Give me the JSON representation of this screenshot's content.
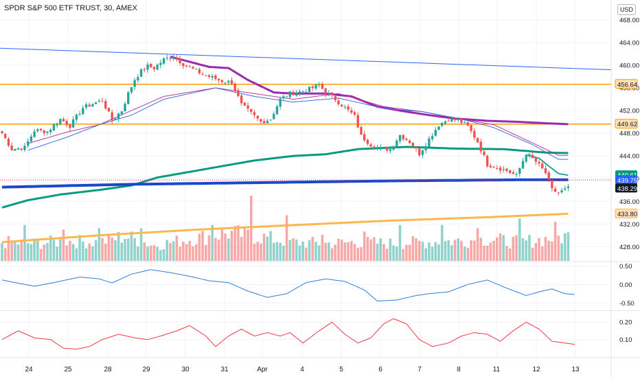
{
  "window": {
    "title": "SPDR S&P 500 ETF TRUST, 30, AMEX"
  },
  "currency_button": "USD",
  "colors": {
    "up": "#26a69a",
    "down": "#ef5350",
    "grid": "#f0f3fa",
    "trend_blue": "#2962ff",
    "orange_level": "#ff9800",
    "purple": "#9c27b0",
    "green_ma": "#089981",
    "blue_ma": "#1848cc",
    "ma_orange": "#ffb74d",
    "osc1": "#2e7bd6",
    "osc2": "#f23645"
  },
  "chart_data": [
    {
      "type": "candlestick",
      "title": "SPDR S&P 500 ETF TRUST, 30, AMEX",
      "ylim": [
        425.5,
        471.5
      ],
      "y_ticks": [
        428,
        432,
        436,
        440,
        444,
        448,
        452,
        456,
        460,
        464,
        468
      ],
      "x_ticks": [
        "24",
        "25",
        "28",
        "29",
        "30",
        "31",
        "Apr",
        "4",
        "5",
        "6",
        "7",
        "8",
        "11",
        "12",
        "13"
      ],
      "price_labels": [
        {
          "value": 456.64,
          "label": "456.64",
          "color": "#ff9800"
        },
        {
          "value": 449.62,
          "label": "449.62",
          "color": "#ff9800"
        },
        {
          "value": 440.61,
          "label": "440.61",
          "color": "#089981"
        },
        {
          "value": 439.75,
          "label": "439.75",
          "color": "#2962ff"
        },
        {
          "value": 438.29,
          "label": "438.29",
          "color": "#131722"
        },
        {
          "value": 433.8,
          "label": "433.80",
          "color": "#ffb74d"
        }
      ],
      "horizontal_levels": [
        456.64,
        449.62
      ],
      "trend_line": {
        "start": 463.0,
        "end": 459.2
      },
      "last_price": 439.75,
      "close_anchors": [
        [
          0,
          448.0
        ],
        [
          3,
          445.2
        ],
        [
          7,
          445.5
        ],
        [
          10,
          448.5
        ],
        [
          14,
          448.3
        ],
        [
          18,
          450.5
        ],
        [
          21,
          449.3
        ],
        [
          25,
          452.5
        ],
        [
          28,
          453.2
        ],
        [
          31,
          453.8
        ],
        [
          34,
          450.3
        ],
        [
          37,
          452.0
        ],
        [
          39,
          455.0
        ],
        [
          41,
          457.5
        ],
        [
          43,
          459.0
        ],
        [
          45,
          459.8
        ],
        [
          47,
          459.5
        ],
        [
          50,
          461.0
        ],
        [
          53,
          461.6
        ],
        [
          56,
          460.2
        ],
        [
          59,
          459.3
        ],
        [
          62,
          458.4
        ],
        [
          65,
          457.8
        ],
        [
          68,
          457.2
        ],
        [
          71,
          457.0
        ],
        [
          74,
          453.0
        ],
        [
          77,
          451.5
        ],
        [
          80,
          450.0
        ],
        [
          83,
          450.5
        ],
        [
          86,
          454.0
        ],
        [
          89,
          455.0
        ],
        [
          92,
          455.3
        ],
        [
          95,
          455.8
        ],
        [
          98,
          456.5
        ],
        [
          100,
          455.2
        ],
        [
          103,
          454.0
        ],
        [
          106,
          452.5
        ],
        [
          109,
          451.0
        ],
        [
          111,
          447.5
        ],
        [
          114,
          446.0
        ],
        [
          117,
          445.3
        ],
        [
          120,
          445.2
        ],
        [
          123,
          447.7
        ],
        [
          126,
          446.5
        ],
        [
          129,
          444.4
        ],
        [
          132,
          447.0
        ],
        [
          135,
          449.5
        ],
        [
          138,
          450.5
        ],
        [
          141,
          450.3
        ],
        [
          144,
          449.2
        ],
        [
          147,
          446.5
        ],
        [
          150,
          442.5
        ],
        [
          153,
          442.0
        ],
        [
          156,
          441.4
        ],
        [
          159,
          440.5
        ],
        [
          162,
          444.5
        ],
        [
          165,
          443.0
        ],
        [
          168,
          441.0
        ],
        [
          170,
          438.0
        ],
        [
          172,
          437.5
        ],
        [
          175,
          438.3
        ]
      ],
      "volume_anchors": [
        [
          0,
          0.3
        ],
        [
          10,
          0.28
        ],
        [
          20,
          0.32
        ],
        [
          30,
          0.3
        ],
        [
          38,
          0.4
        ],
        [
          47,
          0.25
        ],
        [
          58,
          0.35
        ],
        [
          70,
          0.45
        ],
        [
          78,
          0.4
        ],
        [
          90,
          0.3
        ],
        [
          100,
          0.28
        ],
        [
          110,
          0.3
        ],
        [
          120,
          0.28
        ],
        [
          130,
          0.3
        ],
        [
          140,
          0.32
        ],
        [
          150,
          0.35
        ],
        [
          160,
          0.3
        ],
        [
          175,
          0.4
        ]
      ],
      "volume_spikes": [
        [
          7,
          0.55
        ],
        [
          19,
          0.48
        ],
        [
          30,
          0.5
        ],
        [
          43,
          0.5
        ],
        [
          65,
          0.55
        ],
        [
          77,
          1.0
        ],
        [
          88,
          0.7
        ],
        [
          99,
          0.4
        ],
        [
          112,
          0.45
        ],
        [
          123,
          0.55
        ],
        [
          136,
          0.55
        ],
        [
          147,
          0.5
        ],
        [
          160,
          0.65
        ],
        [
          171,
          0.6
        ]
      ],
      "indicator_lines": [
        {
          "name": "purple",
          "color": "#9c27b0",
          "width": 3,
          "from": 52,
          "anchors": [
            [
              52,
              461.5
            ],
            [
              58,
              460.6
            ],
            [
              64,
              459.7
            ],
            [
              70,
              459.5
            ],
            [
              76,
              457.4
            ],
            [
              84,
              455.2
            ],
            [
              90,
              455.0
            ],
            [
              100,
              455.0
            ],
            [
              108,
              454.5
            ],
            [
              116,
              452.7
            ],
            [
              124,
              451.9
            ],
            [
              132,
              451.2
            ],
            [
              140,
              450.6
            ],
            [
              150,
              450.2
            ],
            [
              160,
              450.0
            ],
            [
              167,
              449.8
            ],
            [
              175,
              449.6
            ]
          ]
        },
        {
          "name": "green",
          "color": "#089981",
          "width": 3,
          "from": 0,
          "anchors": [
            [
              0,
              434.9
            ],
            [
              8,
              436.2
            ],
            [
              18,
              437.2
            ],
            [
              30,
              438.0
            ],
            [
              40,
              438.8
            ],
            [
              48,
              440.2
            ],
            [
              58,
              441.2
            ],
            [
              68,
              442.2
            ],
            [
              78,
              443.2
            ],
            [
              90,
              444.0
            ],
            [
              100,
              444.3
            ],
            [
              110,
              445.2
            ],
            [
              125,
              445.6
            ],
            [
              140,
              445.3
            ],
            [
              155,
              445.2
            ],
            [
              168,
              444.6
            ],
            [
              175,
              444.5
            ]
          ]
        },
        {
          "name": "blue",
          "color": "#1848cc",
          "width": 4,
          "from": 0,
          "anchors": [
            [
              0,
              438.5
            ],
            [
              40,
              439.0
            ],
            [
              80,
              439.3
            ],
            [
              120,
              439.6
            ],
            [
              160,
              439.8
            ],
            [
              175,
              439.8
            ]
          ]
        },
        {
          "name": "orange",
          "color": "#ffb74d",
          "width": 3,
          "from": 0,
          "anchors": [
            [
              0,
              428.8
            ],
            [
              30,
              430.0
            ],
            [
              60,
              431.0
            ],
            [
              90,
              431.8
            ],
            [
              120,
              432.6
            ],
            [
              150,
              433.2
            ],
            [
              175,
              433.8
            ]
          ]
        },
        {
          "name": "thin-purple",
          "color": "#b8389b",
          "width": 1,
          "from": 8,
          "anchors": [
            [
              8,
              446.2
            ],
            [
              20,
              448.2
            ],
            [
              30,
              449.5
            ],
            [
              42,
              452.5
            ],
            [
              50,
              454.5
            ],
            [
              66,
              456.0
            ],
            [
              78,
              455.0
            ],
            [
              90,
              454.0
            ],
            [
              104,
              455.0
            ],
            [
              118,
              452.7
            ],
            [
              130,
              451.8
            ],
            [
              142,
              450.5
            ],
            [
              152,
              449.5
            ],
            [
              164,
              446.3
            ],
            [
              172,
              444.1
            ]
          ]
        },
        {
          "name": "thin-blue",
          "color": "#3f6fd9",
          "width": 1,
          "from": 8,
          "anchors": [
            [
              8,
              445.0
            ],
            [
              20,
              447.3
            ],
            [
              30,
              449.5
            ],
            [
              40,
              451.2
            ],
            [
              50,
              454.0
            ],
            [
              66,
              456.0
            ],
            [
              78,
              454.5
            ],
            [
              90,
              453.5
            ],
            [
              104,
              454.2
            ],
            [
              118,
              452.4
            ],
            [
              130,
              451.8
            ],
            [
              142,
              450.5
            ],
            [
              152,
              449.0
            ],
            [
              164,
              446.0
            ],
            [
              172,
              443.4
            ]
          ]
        },
        {
          "name": "teal-short",
          "color": "#26a69a",
          "width": 2,
          "from": 162,
          "anchors": [
            [
              162,
              444.2
            ],
            [
              166,
              443.6
            ],
            [
              169,
              442.2
            ],
            [
              172,
              440.9
            ],
            [
              175,
              440.6
            ]
          ]
        }
      ],
      "sub_panels": [
        {
          "name": "osc1",
          "color": "#2e7bd6",
          "y_ticks": [
            0.5,
            0.0,
            -0.5
          ],
          "ylim": [
            -0.68,
            0.6
          ],
          "anchors": [
            [
              0,
              0.12
            ],
            [
              4,
              0.05
            ],
            [
              10,
              -0.05
            ],
            [
              16,
              0.05
            ],
            [
              24,
              0.2
            ],
            [
              30,
              0.15
            ],
            [
              34,
              0.04
            ],
            [
              40,
              0.28
            ],
            [
              46,
              0.4
            ],
            [
              52,
              0.32
            ],
            [
              58,
              0.22
            ],
            [
              64,
              0.1
            ],
            [
              70,
              0.05
            ],
            [
              76,
              -0.18
            ],
            [
              82,
              -0.35
            ],
            [
              88,
              -0.25
            ],
            [
              94,
              0.05
            ],
            [
              100,
              0.15
            ],
            [
              106,
              0.08
            ],
            [
              112,
              -0.15
            ],
            [
              116,
              -0.45
            ],
            [
              122,
              -0.42
            ],
            [
              128,
              -0.3
            ],
            [
              132,
              -0.25
            ],
            [
              138,
              -0.2
            ],
            [
              144,
              0.0
            ],
            [
              150,
              0.12
            ],
            [
              156,
              -0.1
            ],
            [
              162,
              -0.3
            ],
            [
              166,
              -0.2
            ],
            [
              170,
              -0.12
            ],
            [
              174,
              -0.25
            ],
            [
              178,
              -0.28
            ]
          ]
        },
        {
          "name": "osc2",
          "color": "#f23645",
          "y_ticks": [
            0.2,
            0.1
          ],
          "ylim": [
            0.0,
            0.26
          ],
          "anchors": [
            [
              0,
              0.1
            ],
            [
              5,
              0.15
            ],
            [
              10,
              0.11
            ],
            [
              15,
              0.1
            ],
            [
              19,
              0.05
            ],
            [
              23,
              0.045
            ],
            [
              27,
              0.06
            ],
            [
              31,
              0.1
            ],
            [
              36,
              0.13
            ],
            [
              41,
              0.11
            ],
            [
              45,
              0.1
            ],
            [
              49,
              0.12
            ],
            [
              54,
              0.15
            ],
            [
              58,
              0.18
            ],
            [
              63,
              0.12
            ],
            [
              66,
              0.06
            ],
            [
              70,
              0.12
            ],
            [
              74,
              0.16
            ],
            [
              78,
              0.12
            ],
            [
              82,
              0.14
            ],
            [
              86,
              0.12
            ],
            [
              89,
              0.14
            ],
            [
              93,
              0.08
            ],
            [
              98,
              0.15
            ],
            [
              102,
              0.2
            ],
            [
              106,
              0.13
            ],
            [
              110,
              0.08
            ],
            [
              114,
              0.11
            ],
            [
              118,
              0.19
            ],
            [
              121,
              0.22
            ],
            [
              125,
              0.19
            ],
            [
              129,
              0.1
            ],
            [
              133,
              0.06
            ],
            [
              138,
              0.08
            ],
            [
              142,
              0.12
            ],
            [
              146,
              0.14
            ],
            [
              150,
              0.13
            ],
            [
              154,
              0.09
            ],
            [
              158,
              0.15
            ],
            [
              162,
              0.2
            ],
            [
              166,
              0.16
            ],
            [
              170,
              0.09
            ],
            [
              174,
              0.08
            ],
            [
              178,
              0.07
            ]
          ]
        }
      ]
    }
  ]
}
